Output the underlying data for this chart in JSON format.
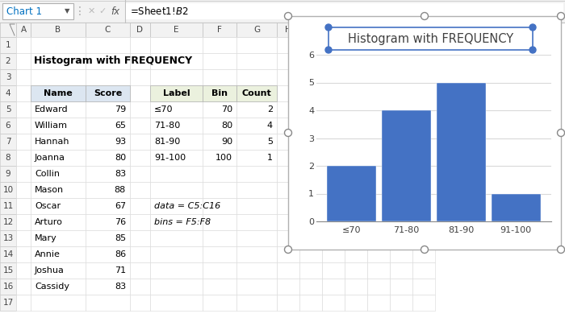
{
  "chart_title": "Histogram with FREQUENCY",
  "categories": [
    "≤70",
    "71-80",
    "81-90",
    "91-100"
  ],
  "counts": [
    2,
    4,
    5,
    1
  ],
  "bar_color": "#4472C4",
  "ylim": [
    0,
    6
  ],
  "yticks": [
    0,
    1,
    2,
    3,
    4,
    5,
    6
  ],
  "names": [
    "Edward",
    "William",
    "Hannah",
    "Joanna",
    "Collin",
    "Mason",
    "Oscar",
    "Arturo",
    "Mary",
    "Annie",
    "Joshua",
    "Cassidy"
  ],
  "scores": [
    79,
    65,
    93,
    80,
    83,
    88,
    67,
    76,
    85,
    86,
    71,
    83
  ],
  "bin_labels": [
    "≤70",
    "71-80",
    "81-90",
    "91-100"
  ],
  "bins": [
    70,
    80,
    90,
    100
  ],
  "bin_counts": [
    2,
    4,
    5,
    1
  ],
  "formula_bar_text": "=Sheet1!$B$2",
  "name_box_text": "Chart 1",
  "main_title_text": "Histogram with FREQUENCY",
  "note1": "data = C5:C16",
  "note2": "bins = F5:F8",
  "table1_header_bg": "#dce6f1",
  "table2_header_bg": "#ebf1de",
  "gridline_color_chart": "#d9d9d9",
  "name_color": "#000000",
  "formula_bar_bg": "#f2f2f2",
  "col_header_bg": "#f2f2f2",
  "chart_handle_color": "#888888",
  "title_handle_color": "#4472C4",
  "row_label_color": "#444444"
}
